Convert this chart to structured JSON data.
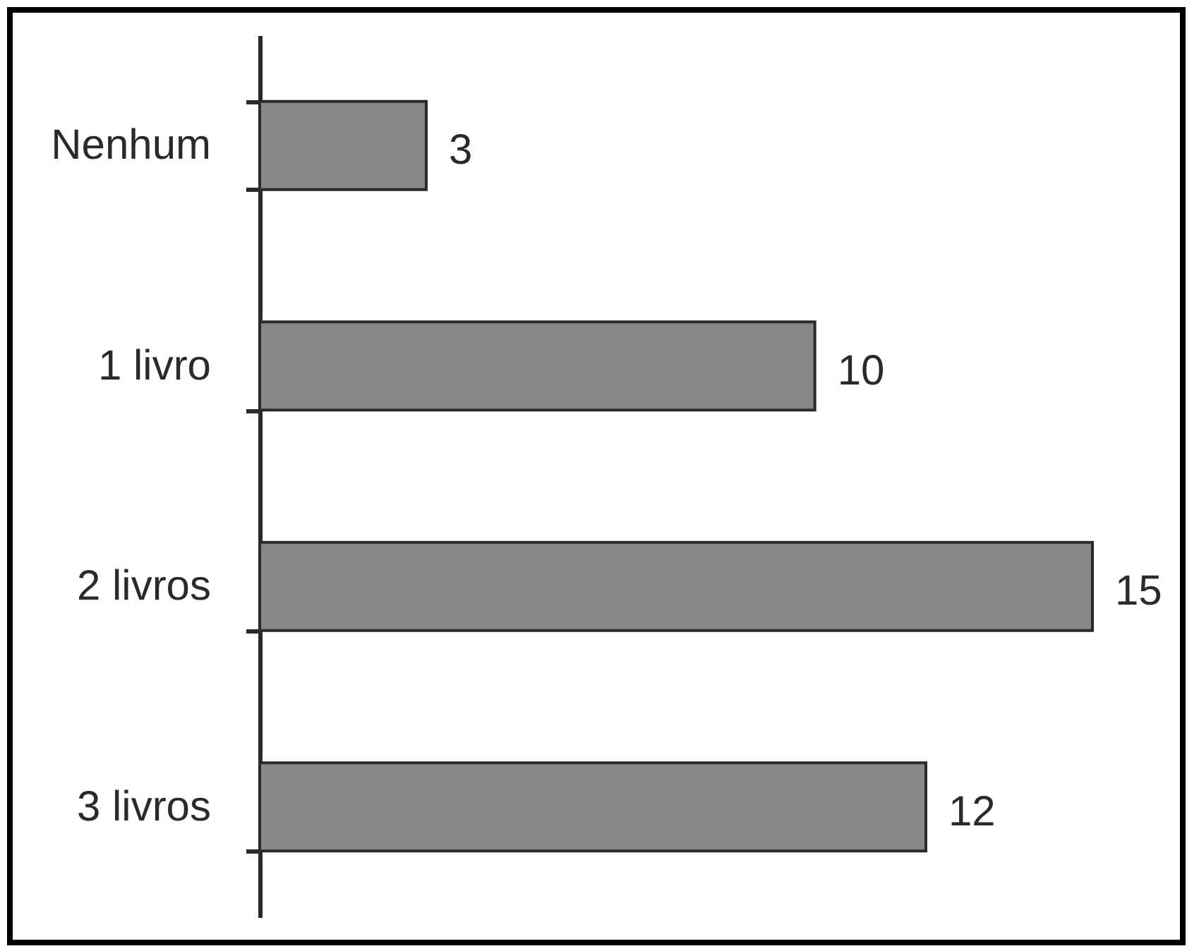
{
  "chart_data": {
    "type": "bar",
    "orientation": "horizontal",
    "categories": [
      "Nenhum",
      "1 livro",
      "2 livros",
      "3 livros"
    ],
    "values": [
      3,
      10,
      15,
      12
    ],
    "color": "#878787",
    "data_labels": true
  }
}
